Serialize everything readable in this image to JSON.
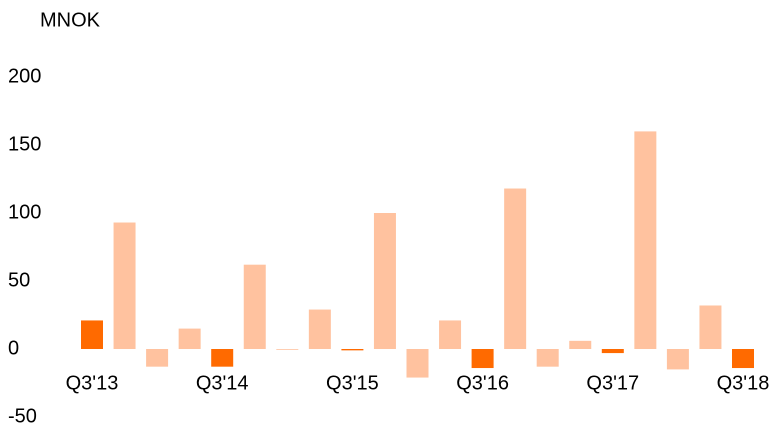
{
  "chart_data": {
    "type": "bar",
    "y_label": "MNOK",
    "categories": [
      "Q3'13",
      null,
      null,
      null,
      "Q3'14",
      null,
      null,
      null,
      "Q3'15",
      null,
      null,
      null,
      "Q3'16",
      null,
      null,
      null,
      "Q3'17",
      null,
      null,
      null,
      "Q3'18"
    ],
    "values": [
      21,
      93,
      -13,
      15,
      -13,
      62,
      0,
      29,
      -1,
      100,
      -21,
      21,
      -14,
      118,
      -13,
      6,
      -3,
      160,
      -15,
      32,
      -14
    ],
    "colors": [
      "#ff6a00",
      "#ffc29f",
      "#ffc29f",
      "#ffc29f",
      "#ff6a00",
      "#ffc29f",
      "#ffc29f",
      "#ffc29f",
      "#ff6a00",
      "#ffc29f",
      "#ffc29f",
      "#ffc29f",
      "#ff6a00",
      "#ffc29f",
      "#ffc29f",
      "#ffc29f",
      "#ff6a00",
      "#ffc29f",
      "#ffc29f",
      "#ffc29f",
      "#ff6a00"
    ],
    "ylim": [
      -50,
      200
    ],
    "yticks": [
      -50,
      0,
      50,
      100,
      150,
      200
    ],
    "grid": false
  }
}
